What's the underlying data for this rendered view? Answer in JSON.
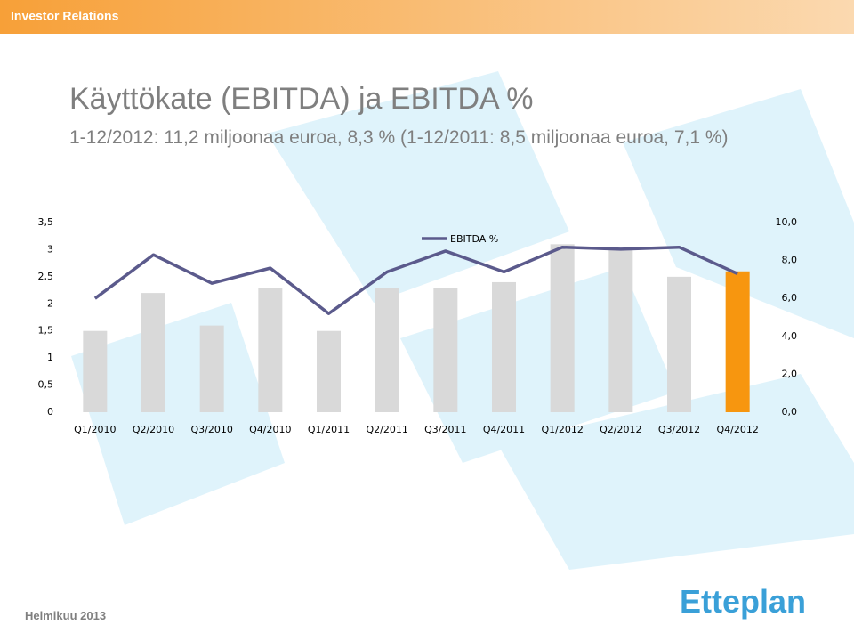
{
  "header": "Investor Relations",
  "title": "Käyttökate (EBITDA) ja EBITDA %",
  "subtitle": "1-12/2012: 11,2 miljoonaa euroa, 8,3 % (1-12/2011: 8,5 miljoonaa euroa, 7,1 %)",
  "footer": "Helmikuu 2013",
  "logo": "Etteplan",
  "chart_data": {
    "type": "bar",
    "categories": [
      "Q1/2010",
      "Q2/2010",
      "Q3/2010",
      "Q4/2010",
      "Q1/2011",
      "Q2/2011",
      "Q3/2011",
      "Q4/2011",
      "Q1/2012",
      "Q2/2012",
      "Q3/2012",
      "Q4/2012"
    ],
    "series": [
      {
        "type": "bar",
        "colors": [
          "#d9d9d9",
          "#d9d9d9",
          "#d9d9d9",
          "#d9d9d9",
          "#d9d9d9",
          "#d9d9d9",
          "#d9d9d9",
          "#d9d9d9",
          "#d9d9d9",
          "#d9d9d9",
          "#d9d9d9",
          "#f7960f"
        ],
        "values": [
          1.5,
          2.2,
          1.6,
          2.3,
          1.5,
          2.3,
          2.3,
          2.4,
          3.1,
          3.0,
          2.5,
          2.6
        ]
      },
      {
        "type": "line",
        "name": "EBITDA %",
        "color": "#5b5a8c",
        "axis": "y2",
        "values": [
          6.0,
          8.3,
          6.8,
          7.6,
          5.2,
          7.4,
          8.5,
          7.4,
          8.7,
          8.6,
          8.7,
          7.3
        ]
      }
    ],
    "ylim": [
      0,
      3.5
    ],
    "yticks": [
      0,
      {
        "value": 0.5,
        "label": "0,5"
      },
      1,
      {
        "value": 1.5,
        "label": "1,5"
      },
      2,
      {
        "value": 2.5,
        "label": "2,5"
      },
      3,
      {
        "value": 3.5,
        "label": "3,5"
      }
    ],
    "y2lim": [
      0,
      10
    ],
    "y2ticks": [
      {
        "value": 0,
        "label": "0,0"
      },
      {
        "value": 2,
        "label": "2,0"
      },
      {
        "value": 4,
        "label": "4,0"
      },
      {
        "value": 6,
        "label": "6,0"
      },
      {
        "value": 8,
        "label": "8,0"
      },
      {
        "value": 10,
        "label": "10,0"
      }
    ],
    "legend": "top"
  }
}
